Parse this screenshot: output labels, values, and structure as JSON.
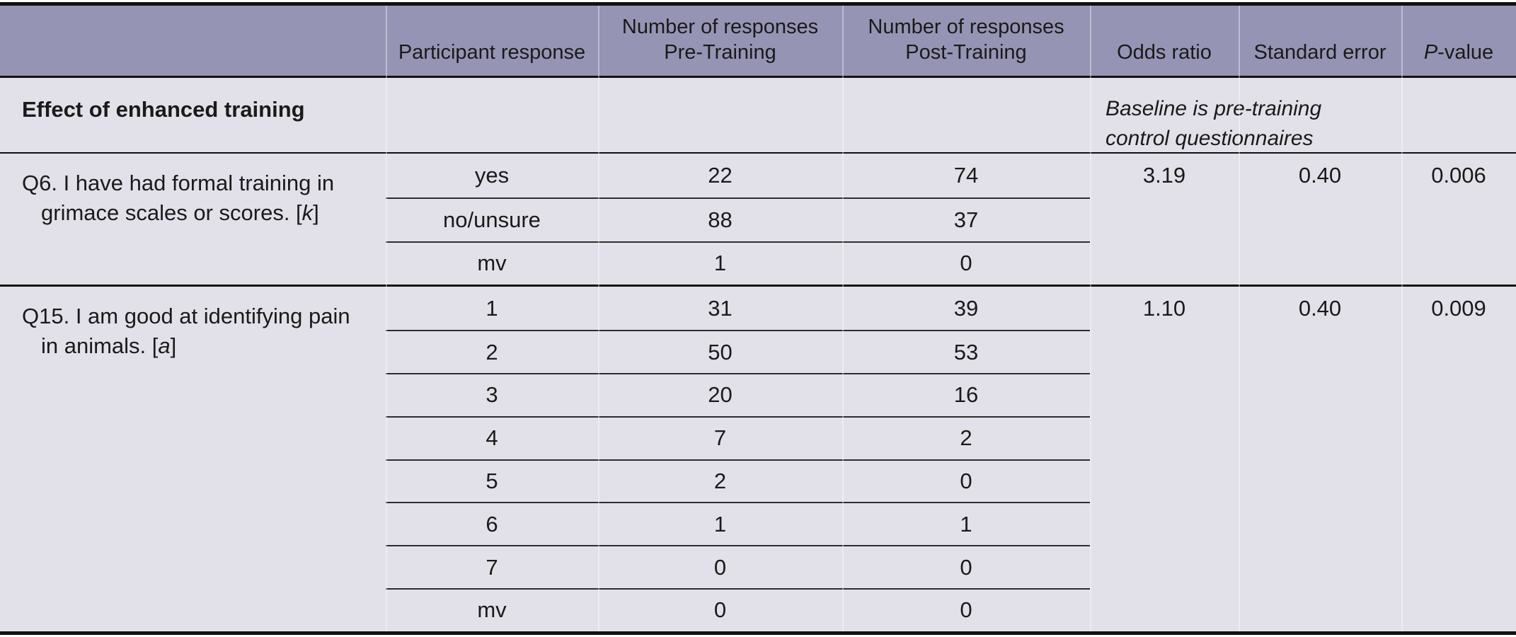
{
  "table": {
    "colors": {
      "header_bg": "#9694b4",
      "body_bg": "#e2e1ea",
      "rule": "#111111",
      "subrow_rule": "#2e2e2e",
      "text": "#1a1a1a"
    },
    "header": {
      "question_col": "",
      "participant": "Participant response",
      "responses_label": "Number of responses",
      "pre": "Pre-Training",
      "post": "Post-Training",
      "odds": "Odds ratio",
      "stderr": "Standard error",
      "p_italic": "P",
      "p_rest": "-value"
    },
    "section": {
      "title": "Effect of enhanced training",
      "note_line1": "Baseline is pre-training",
      "note_line2": "control questionnaires"
    },
    "q6": {
      "q_line1": "Q6. I have had formal training in",
      "q_line2a": "grimace scales or scores. [",
      "q_line2b": "k",
      "q_line2c": "]",
      "rows": [
        {
          "response": "yes",
          "pre": "22",
          "post": "74"
        },
        {
          "response": "no/unsure",
          "pre": "88",
          "post": "37"
        },
        {
          "response": "mv",
          "pre": "1",
          "post": "0"
        }
      ],
      "stats": {
        "odds": "3.19",
        "se": "0.40",
        "p": "0.006"
      }
    },
    "q15": {
      "q_line1": "Q15. I am good at identifying pain",
      "q_line2a": "in animals. [",
      "q_line2b": "a",
      "q_line2c": "]",
      "rows": [
        {
          "response": "1",
          "pre": "31",
          "post": "39"
        },
        {
          "response": "2",
          "pre": "50",
          "post": "53"
        },
        {
          "response": "3",
          "pre": "20",
          "post": "16"
        },
        {
          "response": "4",
          "pre": "7",
          "post": "2"
        },
        {
          "response": "5",
          "pre": "2",
          "post": "0"
        },
        {
          "response": "6",
          "pre": "1",
          "post": "1"
        },
        {
          "response": "7",
          "pre": "0",
          "post": "0"
        },
        {
          "response": "mv",
          "pre": "0",
          "post": "0"
        }
      ],
      "stats": {
        "odds": "1.10",
        "se": "0.40",
        "p": "0.009"
      }
    }
  }
}
